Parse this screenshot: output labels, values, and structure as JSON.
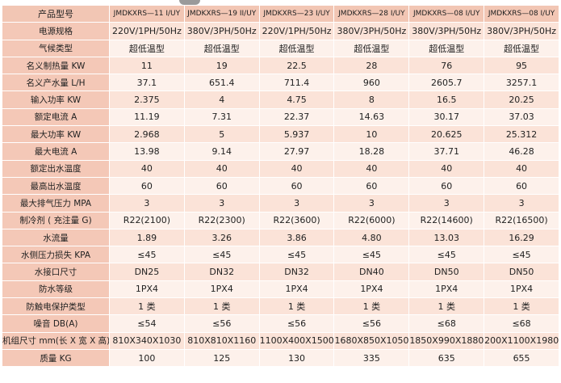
{
  "table": {
    "header": [
      "产品型号",
      "JMDKXRS—11 I/UY",
      "JMDKXRS—19 II/UY",
      "JMDKXRS—23 I/UY",
      "JMDKXRS—28 I/UY",
      "JMDKXRS—08 I/UY",
      "JMDKXRS—08 I/UY"
    ],
    "rows": [
      [
        "电源规格",
        "220V/1PH/50Hz",
        "380V/3PH/50Hz",
        "220V/1PH/50Hz",
        "380V/3PH/50Hz",
        "380V/3PH/50Hz",
        "380V/3PH/50Hz"
      ],
      [
        "气候类型",
        "超低温型",
        "超低温型",
        "超低温型",
        "超低温型",
        "超低温型",
        "超低温型"
      ],
      [
        "名义制热量 KW",
        "11",
        "19",
        "22.5",
        "28",
        "76",
        "95"
      ],
      [
        "名义产水量 L/H",
        "37.1",
        "651.4",
        "711.4",
        "960",
        "2605.7",
        "3257.1"
      ],
      [
        "输入功率 KW",
        "2.375",
        "4",
        "4.75",
        "8",
        "16.5",
        "20.25"
      ],
      [
        "额定电流 A",
        "11.19",
        "7.31",
        "22.37",
        "14.63",
        "30.17",
        "37.03"
      ],
      [
        "最大功率 KW",
        "2.968",
        "5",
        "5.937",
        "10",
        "20.625",
        "25.312"
      ],
      [
        "最大电流 A",
        "13.98",
        "9.14",
        "27.97",
        "18.28",
        "37.71",
        "46.28"
      ],
      [
        "额定出水温度",
        "40",
        "40",
        "40",
        "40",
        "40",
        "40"
      ],
      [
        "最高出水温度",
        "60",
        "60",
        "60",
        "60",
        "60",
        "60"
      ],
      [
        "最大排气压力 MPA",
        "3",
        "3",
        "3",
        "3",
        "3",
        "3"
      ],
      [
        "制冷剂 ( 充注量 G)",
        "R22(2100)",
        "R22(2300)",
        "R22(3600)",
        "R22(6000)",
        "R22(14600)",
        "R22(16500)"
      ],
      [
        "水流量",
        "1.89",
        "3.26",
        "3.86",
        "4.80",
        "13.03",
        "16.29"
      ],
      [
        "水侧压力损失 KPA",
        "≤45",
        "≤45",
        "≤45",
        "≤45",
        "≤45",
        "≤45"
      ],
      [
        "水接口尺寸",
        "DN25",
        "DN32",
        "DN32",
        "DN40",
        "DN50",
        "DN50"
      ],
      [
        "防水等级",
        "1PX4",
        "1PX4",
        "1PX4",
        "1PX4",
        "1PX4",
        "1PX4"
      ],
      [
        "防触电保护类型",
        "1 类",
        "1 类",
        "1 类",
        "1 类",
        "1 类",
        "1 类"
      ],
      [
        "噪音 DB(A)",
        "≤54",
        "≤56",
        "≤56",
        "≤56",
        "≤68",
        "≤68"
      ],
      [
        "机组尺寸 mm(长 X 宽 X 高)",
        "810X340X1030",
        "810X810X1160",
        "1100X400X1500",
        "1680X850X1050",
        "1850X990X1880",
        "200X1100X1980"
      ],
      [
        "质量 KG",
        "100",
        "125",
        "130",
        "335",
        "635",
        "655"
      ]
    ]
  }
}
